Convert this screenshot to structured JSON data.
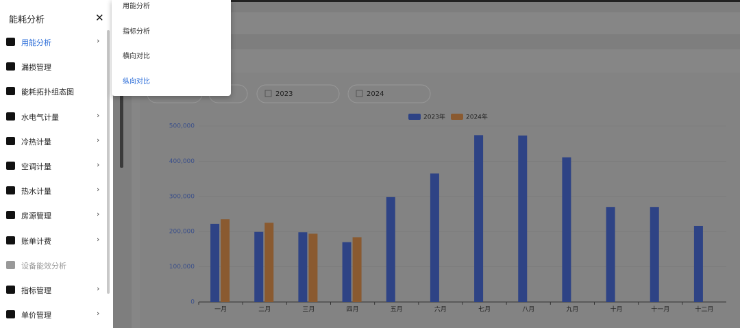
{
  "sidebar": {
    "title": "能耗分析",
    "items": [
      {
        "label": "用能分析",
        "submenu": true,
        "active": true
      },
      {
        "label": "漏损管理"
      },
      {
        "label": "能耗拓扑组态图"
      },
      {
        "label": "水电气计量",
        "submenu": true
      },
      {
        "label": "冷热计量",
        "submenu": true
      },
      {
        "label": "空调计量",
        "submenu": true
      },
      {
        "label": "热水计量",
        "submenu": true
      },
      {
        "label": "房源管理",
        "submenu": true
      },
      {
        "label": "账单计费",
        "submenu": true
      },
      {
        "label": "设备能效分析",
        "disabled": true
      },
      {
        "label": "指标管理",
        "submenu": true
      },
      {
        "label": "单价管理",
        "submenu": true
      }
    ]
  },
  "submenu": {
    "items": [
      {
        "label": "用能分析"
      },
      {
        "label": "指标分析"
      },
      {
        "label": "横向对比"
      },
      {
        "label": "纵向对比",
        "active": true
      }
    ]
  },
  "filters": [
    "2023",
    "2024"
  ],
  "chart_data": {
    "type": "bar",
    "categories": [
      "一月",
      "二月",
      "三月",
      "四月",
      "五月",
      "六月",
      "七月",
      "八月",
      "九月",
      "十月",
      "十一月",
      "十二月"
    ],
    "series": [
      {
        "name": "2023年",
        "color": "#2e4385",
        "values": [
          222000,
          199000,
          198000,
          170000,
          298000,
          365000,
          474000,
          473000,
          411000,
          270000,
          270000,
          216000
        ]
      },
      {
        "name": "2024年",
        "color": "#8a5a30",
        "values": [
          235000,
          225000,
          194000,
          184000,
          null,
          null,
          null,
          null,
          null,
          null,
          null,
          null
        ]
      }
    ],
    "ylim": [
      0,
      500000
    ],
    "yticks": [
      0,
      {
        "value": 100000,
        "label": "100,000"
      },
      {
        "value": 200000,
        "label": "200,000"
      },
      {
        "value": 300000,
        "label": "300,000"
      },
      {
        "value": 400000,
        "label": "400,000"
      },
      {
        "value": 500000,
        "label": "500,000"
      }
    ],
    "grid": true
  }
}
